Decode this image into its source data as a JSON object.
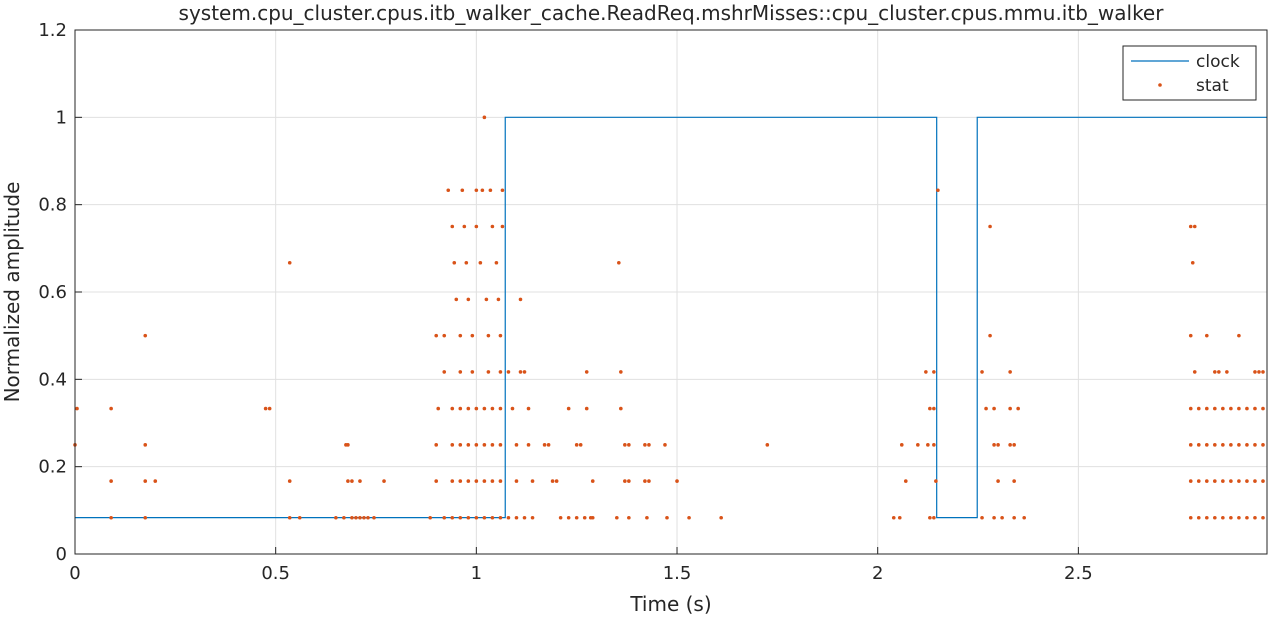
{
  "chart_data": {
    "type": "line",
    "title": "system.cpu_cluster.cpus.itb_walker_cache.ReadReq.mshrMisses::cpu_cluster.cpus.mmu.itb_walker",
    "xlabel": "Time (s)",
    "ylabel": "Normalized amplitude",
    "xlim": [
      0,
      2.97
    ],
    "ylim": [
      0,
      1.2
    ],
    "xticks": [
      0,
      0.5,
      1,
      1.5,
      2,
      2.5
    ],
    "xtick_labels": [
      "0",
      "0.5",
      "1",
      "1.5",
      "2",
      "2.5"
    ],
    "yticks": [
      0,
      0.2,
      0.4,
      0.6,
      0.8,
      1,
      1.2
    ],
    "ytick_labels": [
      "0",
      "0.2",
      "0.4",
      "0.6",
      "0.8",
      "1",
      "1.2"
    ],
    "grid": true,
    "legend_position": "top-right",
    "colors": {
      "clock": "#0072bd",
      "stat": "#d95319"
    },
    "series": [
      {
        "name": "clock",
        "style": "step-line",
        "x": [
          0,
          1.072,
          1.072,
          2.147,
          2.147,
          2.248,
          2.248,
          2.97
        ],
        "y": [
          0.0833,
          0.0833,
          1,
          1,
          0.0833,
          0.0833,
          1,
          1
        ]
      },
      {
        "name": "stat",
        "style": "dots",
        "points": [
          [
            0,
            0.25
          ],
          [
            0.005,
            0.333
          ],
          [
            0.09,
            0.333
          ],
          [
            0.09,
            0.167
          ],
          [
            0.09,
            0.083
          ],
          [
            0.175,
            0.5
          ],
          [
            0.175,
            0.25
          ],
          [
            0.175,
            0.167
          ],
          [
            0.175,
            0.083
          ],
          [
            0.2,
            0.167
          ],
          [
            0.475,
            0.333
          ],
          [
            0.485,
            0.333
          ],
          [
            0.535,
            0.667
          ],
          [
            0.535,
            0.167
          ],
          [
            0.535,
            0.083
          ],
          [
            0.56,
            0.083
          ],
          [
            0.65,
            0.083
          ],
          [
            0.67,
            0.083
          ],
          [
            0.675,
            0.25
          ],
          [
            0.68,
            0.25
          ],
          [
            0.68,
            0.167
          ],
          [
            0.69,
            0.167
          ],
          [
            0.69,
            0.083
          ],
          [
            0.7,
            0.083
          ],
          [
            0.71,
            0.167
          ],
          [
            0.71,
            0.083
          ],
          [
            0.72,
            0.083
          ],
          [
            0.73,
            0.083
          ],
          [
            0.745,
            0.083
          ],
          [
            0.77,
            0.167
          ],
          [
            0.885,
            0.083
          ],
          [
            0.9,
            0.5
          ],
          [
            0.9,
            0.25
          ],
          [
            0.9,
            0.167
          ],
          [
            0.905,
            0.333
          ],
          [
            0.92,
            0.5
          ],
          [
            0.92,
            0.417
          ],
          [
            0.93,
            0.833
          ],
          [
            0.94,
            0.75
          ],
          [
            0.945,
            0.667
          ],
          [
            0.95,
            0.583
          ],
          [
            0.96,
            0.5
          ],
          [
            0.96,
            0.417
          ],
          [
            0.965,
            0.833
          ],
          [
            0.97,
            0.75
          ],
          [
            0.975,
            0.667
          ],
          [
            0.98,
            0.583
          ],
          [
            0.99,
            0.5
          ],
          [
            0.99,
            0.417
          ],
          [
            1.0,
            0.75
          ],
          [
            1.0,
            0.833
          ],
          [
            1.01,
            0.667
          ],
          [
            1.015,
            0.833
          ],
          [
            1.02,
            1.0
          ],
          [
            1.025,
            0.583
          ],
          [
            1.03,
            0.5
          ],
          [
            1.03,
            0.417
          ],
          [
            1.035,
            0.833
          ],
          [
            1.04,
            0.75
          ],
          [
            1.05,
            0.667
          ],
          [
            1.055,
            0.583
          ],
          [
            1.06,
            0.5
          ],
          [
            1.06,
            0.417
          ],
          [
            1.065,
            0.75
          ],
          [
            1.065,
            0.833
          ],
          [
            0.94,
            0.333
          ],
          [
            0.96,
            0.333
          ],
          [
            0.98,
            0.333
          ],
          [
            1.0,
            0.333
          ],
          [
            1.02,
            0.333
          ],
          [
            1.04,
            0.333
          ],
          [
            1.06,
            0.333
          ],
          [
            0.94,
            0.25
          ],
          [
            0.96,
            0.25
          ],
          [
            0.98,
            0.25
          ],
          [
            1.0,
            0.25
          ],
          [
            1.02,
            0.25
          ],
          [
            1.04,
            0.25
          ],
          [
            1.06,
            0.25
          ],
          [
            0.94,
            0.167
          ],
          [
            0.96,
            0.167
          ],
          [
            0.98,
            0.167
          ],
          [
            1.0,
            0.167
          ],
          [
            1.02,
            0.167
          ],
          [
            1.04,
            0.167
          ],
          [
            1.06,
            0.167
          ],
          [
            0.92,
            0.083
          ],
          [
            0.94,
            0.083
          ],
          [
            0.96,
            0.083
          ],
          [
            0.98,
            0.083
          ],
          [
            1.0,
            0.083
          ],
          [
            1.02,
            0.083
          ],
          [
            1.04,
            0.083
          ],
          [
            1.06,
            0.083
          ],
          [
            1.08,
            0.417
          ],
          [
            1.09,
            0.333
          ],
          [
            1.1,
            0.25
          ],
          [
            1.1,
            0.167
          ],
          [
            1.11,
            0.583
          ],
          [
            1.11,
            0.417
          ],
          [
            1.12,
            0.417
          ],
          [
            1.13,
            0.333
          ],
          [
            1.13,
            0.25
          ],
          [
            1.14,
            0.167
          ],
          [
            1.08,
            0.083
          ],
          [
            1.1,
            0.083
          ],
          [
            1.12,
            0.083
          ],
          [
            1.14,
            0.083
          ],
          [
            1.17,
            0.25
          ],
          [
            1.18,
            0.25
          ],
          [
            1.19,
            0.167
          ],
          [
            1.2,
            0.167
          ],
          [
            1.23,
            0.333
          ],
          [
            1.25,
            0.25
          ],
          [
            1.26,
            0.25
          ],
          [
            1.275,
            0.417
          ],
          [
            1.275,
            0.333
          ],
          [
            1.29,
            0.167
          ],
          [
            1.29,
            0.083
          ],
          [
            1.21,
            0.083
          ],
          [
            1.23,
            0.083
          ],
          [
            1.25,
            0.083
          ],
          [
            1.27,
            0.083
          ],
          [
            1.285,
            0.083
          ],
          [
            1.355,
            0.667
          ],
          [
            1.36,
            0.417
          ],
          [
            1.36,
            0.333
          ],
          [
            1.37,
            0.25
          ],
          [
            1.38,
            0.25
          ],
          [
            1.37,
            0.167
          ],
          [
            1.38,
            0.167
          ],
          [
            1.35,
            0.083
          ],
          [
            1.38,
            0.083
          ],
          [
            1.42,
            0.25
          ],
          [
            1.43,
            0.25
          ],
          [
            1.42,
            0.167
          ],
          [
            1.43,
            0.167
          ],
          [
            1.425,
            0.083
          ],
          [
            1.47,
            0.25
          ],
          [
            1.475,
            0.083
          ],
          [
            1.5,
            0.167
          ],
          [
            1.53,
            0.083
          ],
          [
            1.61,
            0.083
          ],
          [
            1.725,
            0.25
          ],
          [
            2.04,
            0.083
          ],
          [
            2.055,
            0.083
          ],
          [
            2.06,
            0.25
          ],
          [
            2.07,
            0.167
          ],
          [
            2.1,
            0.25
          ],
          [
            2.12,
            0.417
          ],
          [
            2.125,
            0.25
          ],
          [
            2.13,
            0.333
          ],
          [
            2.14,
            0.417
          ],
          [
            2.14,
            0.333
          ],
          [
            2.14,
            0.25
          ],
          [
            2.145,
            0.167
          ],
          [
            2.13,
            0.083
          ],
          [
            2.14,
            0.083
          ],
          [
            2.15,
            0.833
          ],
          [
            2.26,
            0.417
          ],
          [
            2.27,
            0.333
          ],
          [
            2.28,
            0.75
          ],
          [
            2.28,
            0.5
          ],
          [
            2.29,
            0.333
          ],
          [
            2.29,
            0.25
          ],
          [
            2.3,
            0.25
          ],
          [
            2.3,
            0.167
          ],
          [
            2.33,
            0.417
          ],
          [
            2.33,
            0.333
          ],
          [
            2.33,
            0.25
          ],
          [
            2.34,
            0.25
          ],
          [
            2.34,
            0.167
          ],
          [
            2.35,
            0.333
          ],
          [
            2.26,
            0.083
          ],
          [
            2.29,
            0.083
          ],
          [
            2.31,
            0.083
          ],
          [
            2.34,
            0.083
          ],
          [
            2.365,
            0.083
          ],
          [
            2.78,
            0.75
          ],
          [
            2.785,
            0.667
          ],
          [
            2.79,
            0.75
          ],
          [
            2.78,
            0.5
          ],
          [
            2.79,
            0.417
          ],
          [
            2.82,
            0.5
          ],
          [
            2.84,
            0.417
          ],
          [
            2.85,
            0.417
          ],
          [
            2.87,
            0.417
          ],
          [
            2.9,
            0.5
          ],
          [
            2.94,
            0.417
          ],
          [
            2.95,
            0.417
          ],
          [
            2.96,
            0.417
          ],
          [
            2.78,
            0.333
          ],
          [
            2.8,
            0.333
          ],
          [
            2.82,
            0.333
          ],
          [
            2.84,
            0.333
          ],
          [
            2.86,
            0.333
          ],
          [
            2.88,
            0.333
          ],
          [
            2.9,
            0.333
          ],
          [
            2.92,
            0.333
          ],
          [
            2.94,
            0.333
          ],
          [
            2.96,
            0.333
          ],
          [
            2.78,
            0.25
          ],
          [
            2.8,
            0.25
          ],
          [
            2.82,
            0.25
          ],
          [
            2.84,
            0.25
          ],
          [
            2.86,
            0.25
          ],
          [
            2.88,
            0.25
          ],
          [
            2.9,
            0.25
          ],
          [
            2.92,
            0.25
          ],
          [
            2.94,
            0.25
          ],
          [
            2.96,
            0.25
          ],
          [
            2.78,
            0.167
          ],
          [
            2.8,
            0.167
          ],
          [
            2.82,
            0.167
          ],
          [
            2.84,
            0.167
          ],
          [
            2.86,
            0.167
          ],
          [
            2.88,
            0.167
          ],
          [
            2.9,
            0.167
          ],
          [
            2.92,
            0.167
          ],
          [
            2.94,
            0.167
          ],
          [
            2.96,
            0.167
          ],
          [
            2.78,
            0.083
          ],
          [
            2.8,
            0.083
          ],
          [
            2.82,
            0.083
          ],
          [
            2.84,
            0.083
          ],
          [
            2.86,
            0.083
          ],
          [
            2.88,
            0.083
          ],
          [
            2.9,
            0.083
          ],
          [
            2.92,
            0.083
          ],
          [
            2.94,
            0.083
          ],
          [
            2.96,
            0.083
          ]
        ]
      }
    ]
  }
}
